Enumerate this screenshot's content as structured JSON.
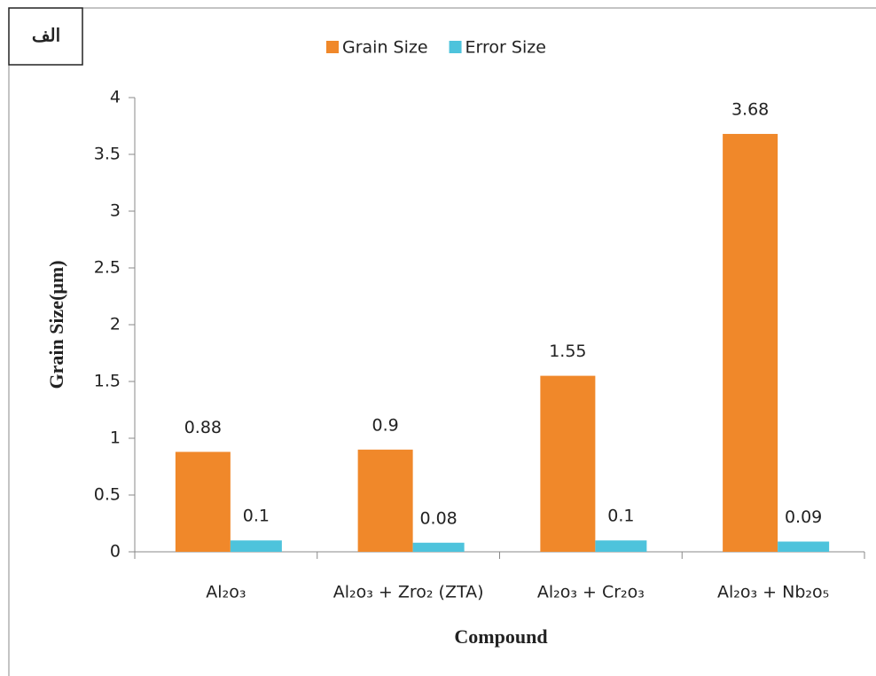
{
  "chart_data": {
    "type": "bar",
    "corner_label": "الف",
    "xlabel": "Compound",
    "ylabel": "Grain Size(μm)",
    "categories": [
      "Al₂o₃",
      "Al₂o₃ + Zro₂ (ZTA)",
      "Al₂o₃ +  Cr₂o₃",
      "Al₂o₃ + Nb₂o₅"
    ],
    "series": [
      {
        "name": "Grain Size",
        "color": "#f0882a",
        "values": [
          0.88,
          0.9,
          1.55,
          3.68
        ]
      },
      {
        "name": "Error Size",
        "color": "#4ec3dc",
        "values": [
          0.1,
          0.08,
          0.1,
          0.09
        ]
      }
    ],
    "ylim": [
      0,
      4
    ],
    "yticks": [
      0,
      0.5,
      1,
      1.5,
      2,
      2.5,
      3,
      3.5,
      4
    ]
  }
}
